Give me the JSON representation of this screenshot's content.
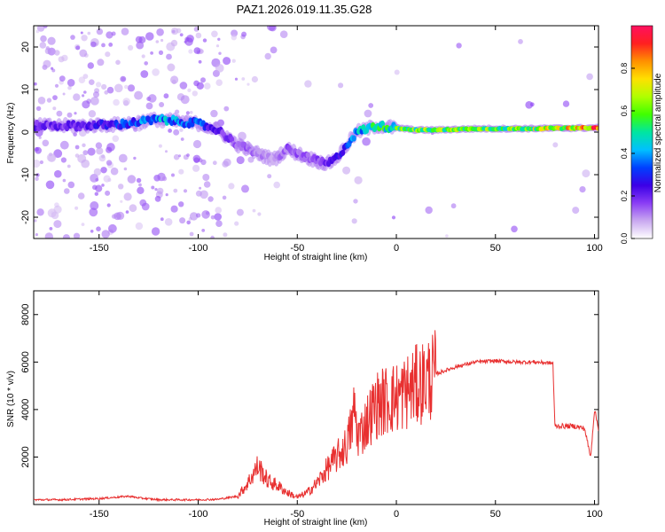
{
  "chart_data": [
    {
      "type": "heatmap",
      "title": "PAZ1.2026.019.11.35.G28",
      "xlabel": "Height of straight line (km)",
      "ylabel": "Frequency (Hz)",
      "xlim": [
        -183,
        102
      ],
      "ylim": [
        -25,
        25
      ],
      "xticks": [
        -150,
        -100,
        -50,
        0,
        50,
        100
      ],
      "yticks": [
        -20,
        -10,
        0,
        10,
        20
      ],
      "colorbar": {
        "label": "Normalized spectral amplitude",
        "range": [
          0.0,
          1.0
        ],
        "ticks": [
          0.0,
          0.2,
          0.4,
          0.6,
          0.8
        ],
        "colormap": [
          "#ffffff",
          "#c9a8f0",
          "#8a3df5",
          "#3b00e6",
          "#0040ff",
          "#00c0ff",
          "#00e6a0",
          "#40ff00",
          "#b0ff00",
          "#ffe000",
          "#ff9000",
          "#ff2020",
          "#ff1060"
        ]
      },
      "ridge": {
        "height_km": [
          -180,
          -160,
          -140,
          -120,
          -100,
          -90,
          -80,
          -70,
          -62,
          -55,
          -45,
          -35,
          -30,
          -25,
          -20,
          -10,
          0,
          10,
          20,
          40,
          60,
          80,
          100
        ],
        "frequency_hz": [
          1.5,
          1.5,
          1.8,
          3.0,
          2.0,
          0.5,
          -3.0,
          -5.0,
          -6.5,
          -4.0,
          -6.0,
          -7.5,
          -6.0,
          -3.0,
          0.0,
          1.5,
          1.0,
          0.5,
          0.5,
          0.8,
          0.8,
          0.9,
          1.0
        ],
        "amplitude": [
          0.2,
          0.2,
          0.3,
          0.4,
          0.35,
          0.2,
          0.15,
          0.12,
          0.1,
          0.15,
          0.15,
          0.2,
          0.25,
          0.3,
          0.4,
          0.5,
          0.55,
          0.6,
          0.65,
          0.6,
          0.6,
          0.7,
          0.85
        ]
      }
    },
    {
      "type": "line",
      "title": "",
      "xlabel": "Height of straight line (km)",
      "ylabel": "SNR (10 * v/v)",
      "xlim": [
        -183,
        102
      ],
      "ylim": [
        0,
        9000
      ],
      "xticks": [
        -150,
        -100,
        -50,
        0,
        50,
        100
      ],
      "yticks": [
        2000,
        4000,
        6000,
        8000
      ],
      "series": [
        {
          "name": "SNR",
          "color": "#e83030",
          "x": [
            -183,
            -170,
            -150,
            -135,
            -130,
            -120,
            -100,
            -90,
            -80,
            -75,
            -70,
            -68,
            -65,
            -60,
            -55,
            -50,
            -45,
            -40,
            -35,
            -30,
            -25,
            -22,
            -21,
            -20,
            -18,
            -15,
            -10,
            -5,
            0,
            10,
            20,
            30,
            40,
            50,
            60,
            70,
            79,
            80,
            90,
            95,
            98,
            100,
            102
          ],
          "y": [
            200,
            200,
            250,
            350,
            280,
            200,
            200,
            220,
            350,
            900,
            1600,
            1400,
            1000,
            800,
            500,
            300,
            500,
            900,
            1500,
            2000,
            2500,
            3500,
            4200,
            3000,
            3000,
            3500,
            4200,
            4400,
            4500,
            5000,
            5500,
            5800,
            6000,
            6050,
            6000,
            6000,
            5950,
            3300,
            3300,
            3200,
            2000,
            4000,
            3200
          ]
        }
      ]
    }
  ]
}
